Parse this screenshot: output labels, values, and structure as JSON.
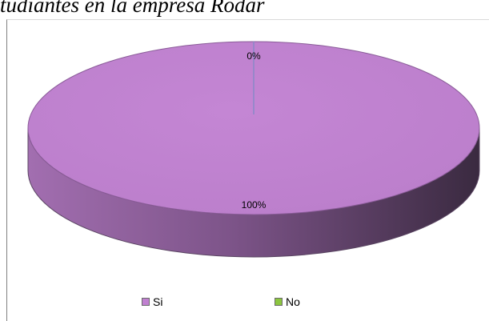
{
  "title": "tudiantes en la empresa Rodar",
  "chart_data": {
    "type": "pie",
    "style": "3d",
    "categories": [
      "Si",
      "No"
    ],
    "values": [
      100,
      0
    ],
    "data_labels": [
      "100%",
      "0%"
    ],
    "colors": [
      "#c080d0",
      "#8cc63f"
    ],
    "legend": "bottom",
    "title": "tudiantes en la empresa Rodar"
  }
}
